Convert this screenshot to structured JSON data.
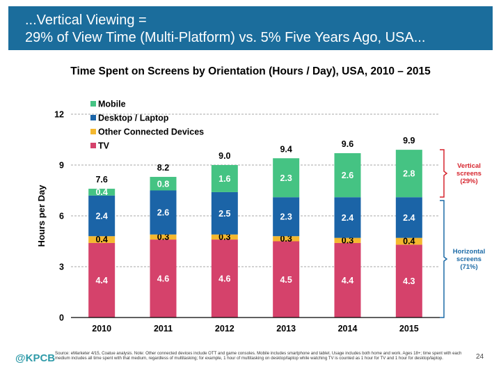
{
  "banner": {
    "line1": "...Vertical Viewing =",
    "line2": "29% of View Time (Multi-Platform) vs. 5% Five Years Ago, USA..."
  },
  "chart_data": {
    "type": "bar",
    "stacked": true,
    "title": "Time Spent on Screens by Orientation (Hours / Day), USA, 2010 – 2015",
    "ylabel": "Hours per Day",
    "xlabel": "",
    "ylim": [
      0,
      12
    ],
    "yticks": [
      "0",
      "3",
      "6",
      "9",
      "12"
    ],
    "categories": [
      "2010",
      "2011",
      "2012",
      "2013",
      "2014",
      "2015"
    ],
    "series": [
      {
        "name": "TV",
        "color": "#d5426b",
        "values": [
          4.4,
          4.6,
          4.6,
          4.5,
          4.4,
          4.3
        ],
        "labels": [
          "4.4",
          "4.6",
          "4.6",
          "4.5",
          "4.4",
          "4.3"
        ]
      },
      {
        "name": "Other Connected Devices",
        "color": "#f4b82f",
        "values": [
          0.4,
          0.3,
          0.3,
          0.3,
          0.3,
          0.4
        ],
        "labels": [
          "0.4",
          "0.3",
          "0.3",
          "0.3",
          "0.3",
          "0.4"
        ]
      },
      {
        "name": "Desktop / Laptop",
        "color": "#1b64a7",
        "values": [
          2.4,
          2.6,
          2.5,
          2.3,
          2.4,
          2.4
        ],
        "labels": [
          "2.4",
          "2.6",
          "2.5",
          "2.3",
          "2.4",
          "2.4"
        ]
      },
      {
        "name": "Mobile",
        "color": "#45c383",
        "values": [
          0.4,
          0.8,
          1.6,
          2.3,
          2.6,
          2.8
        ],
        "labels": [
          "0.4",
          "0.8",
          "1.6",
          "2.3",
          "2.6",
          "2.8"
        ]
      }
    ],
    "totals": [
      "7.6",
      "8.2",
      "9.0",
      "9.4",
      "9.6",
      "9.9"
    ],
    "legend_order": [
      "Mobile",
      "Desktop / Laptop",
      "Other Connected Devices",
      "TV"
    ],
    "legend_position": "top-left",
    "grid": true,
    "annotations": [
      {
        "lines": [
          "Vertical",
          "screens",
          "(29%)"
        ],
        "color": "#d6242d"
      },
      {
        "lines": [
          "Horizontal",
          "screens",
          "(71%)"
        ],
        "color": "#1b6aa6"
      }
    ]
  },
  "footer": {
    "logo": "@KPCB",
    "source": "Source: eMarketer 4/15, Coatue analysis. Note: Other connected devices include OTT and game consoles. Mobile includes smartphone and tablet. Usage includes both home and work. Ages 18+; time spent with each medium includes all time spent with that medium, regardless of multitasking; for example, 1 hour of multitasking on desktop/laptop while watching TV is counted as 1 hour for TV and 1 hour for desktop/laptop.",
    "page_number": "24"
  }
}
